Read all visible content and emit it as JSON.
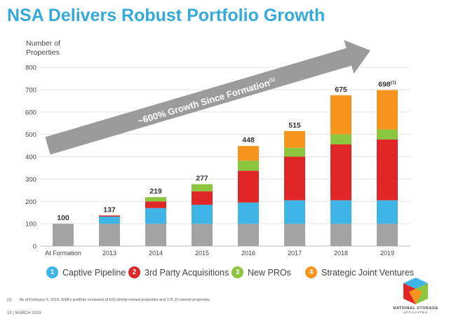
{
  "title": "NSA Delivers Robust Portfolio Growth",
  "footnote": {
    "marker": "(1)",
    "text": "As of February 6, 2019, NSA's portfolio consisted of 522 wholly-owned properties and 176 JV-owned properties."
  },
  "page_footer": "10  |  MARCH 2019",
  "logo": {
    "name": "NATIONAL STORAGE",
    "sub": "AFFILIATES"
  },
  "colors": {
    "title": "#35a9d8",
    "base": "#a3a3a3",
    "captive": "#3fb4e6",
    "third_party": "#e02626",
    "new_pros": "#8cc63f",
    "strategic": "#f7941d",
    "arrow": "#9b9b9b"
  },
  "chart_data": {
    "type": "bar",
    "stacked": true,
    "title": "NSA Delivers Robust Portfolio Growth",
    "ylabel": "Number of Properties",
    "xlabel": "",
    "ylim": [
      0,
      800
    ],
    "yticks": [
      0,
      100,
      200,
      300,
      400,
      500,
      600,
      700,
      800
    ],
    "grid": true,
    "legend": "bottom",
    "categories": [
      "At Formation",
      "2013",
      "2014",
      "2015",
      "2016",
      "2017",
      "2018",
      "2019"
    ],
    "totals": [
      "100",
      "137",
      "219",
      "277",
      "448",
      "515",
      "675",
      "698"
    ],
    "total_superscripts": [
      "",
      "",
      "",
      "",
      "",
      "",
      "",
      "(1)"
    ],
    "series": [
      {
        "name": "",
        "color_key": "base",
        "values": [
          100,
          100,
          100,
          100,
          100,
          100,
          100,
          100
        ]
      },
      {
        "name": "Captive Pipeline",
        "number": "1",
        "color_key": "captive",
        "values": [
          0,
          32,
          70,
          85,
          95,
          105,
          105,
          105
        ]
      },
      {
        "name": "3rd Party Acquisitions",
        "number": "2",
        "color_key": "third_party",
        "values": [
          0,
          5,
          30,
          60,
          142,
          195,
          250,
          272
        ]
      },
      {
        "name": "New PROs",
        "number": "3",
        "color_key": "new_pros",
        "values": [
          0,
          0,
          19,
          32,
          45,
          40,
          45,
          45
        ]
      },
      {
        "name": "Strategic Joint Ventures",
        "number": "4",
        "color_key": "strategic",
        "values": [
          0,
          0,
          0,
          0,
          66,
          75,
          175,
          176
        ]
      }
    ],
    "annotation": {
      "text": "~600% Growth Since Formation",
      "superscript": "(1)"
    }
  }
}
